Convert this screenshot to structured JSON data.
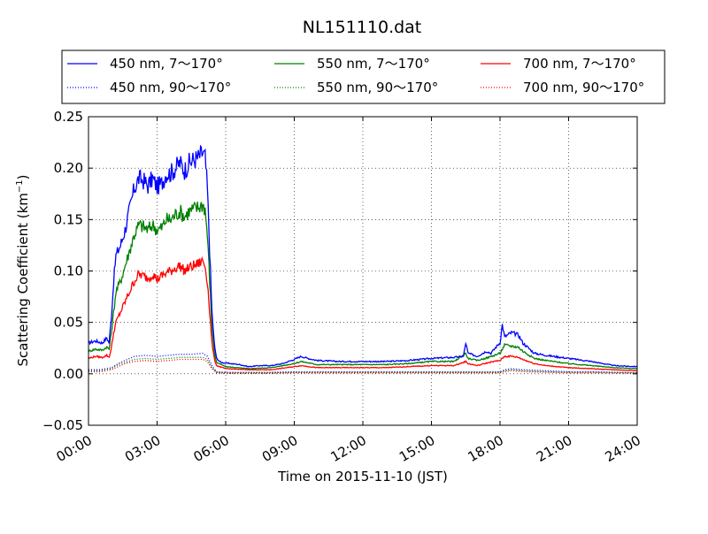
{
  "chart_data": {
    "type": "line",
    "title": "NL151110.dat",
    "xlabel": "Time on 2015-11-10 (JST)",
    "ylabel_main": "Scattering Coefficient (km",
    "ylabel_sup": "−1",
    "ylabel_close": ")",
    "xlim": [
      0,
      24
    ],
    "ylim": [
      -0.05,
      0.25
    ],
    "x_ticks": [
      0,
      3,
      6,
      9,
      12,
      15,
      18,
      21,
      24
    ],
    "x_tick_labels": [
      "00:00",
      "03:00",
      "06:00",
      "09:00",
      "12:00",
      "15:00",
      "18:00",
      "21:00",
      "24:00"
    ],
    "y_ticks": [
      -0.05,
      0.0,
      0.05,
      0.1,
      0.15,
      0.2,
      0.25
    ],
    "y_tick_labels": [
      "−0.05",
      "0.00",
      "0.05",
      "0.10",
      "0.15",
      "0.20",
      "0.25"
    ],
    "grid": true,
    "legend_position": "top, outside plot, 3 columns",
    "series": [
      {
        "name": "450 nm, 7～170°",
        "color": "#0000ff",
        "style": "solid",
        "points": [
          [
            0,
            0.03
          ],
          [
            0.3,
            0.032
          ],
          [
            0.6,
            0.03
          ],
          [
            0.8,
            0.035
          ],
          [
            0.9,
            0.03
          ],
          [
            1.0,
            0.055
          ],
          [
            1.1,
            0.09
          ],
          [
            1.2,
            0.115
          ],
          [
            1.4,
            0.125
          ],
          [
            1.6,
            0.14
          ],
          [
            1.8,
            0.16
          ],
          [
            2.0,
            0.18
          ],
          [
            2.2,
            0.19
          ],
          [
            2.4,
            0.188
          ],
          [
            2.6,
            0.183
          ],
          [
            2.8,
            0.19
          ],
          [
            3.0,
            0.182
          ],
          [
            3.2,
            0.185
          ],
          [
            3.4,
            0.195
          ],
          [
            3.6,
            0.195
          ],
          [
            3.8,
            0.2
          ],
          [
            4.0,
            0.205
          ],
          [
            4.2,
            0.198
          ],
          [
            4.4,
            0.205
          ],
          [
            4.6,
            0.208
          ],
          [
            4.8,
            0.21
          ],
          [
            5.0,
            0.215
          ],
          [
            5.1,
            0.21
          ],
          [
            5.2,
            0.18
          ],
          [
            5.3,
            0.12
          ],
          [
            5.4,
            0.06
          ],
          [
            5.5,
            0.03
          ],
          [
            5.6,
            0.015
          ],
          [
            5.8,
            0.011
          ],
          [
            6.2,
            0.01
          ],
          [
            6.6,
            0.009
          ],
          [
            7.0,
            0.007
          ],
          [
            7.5,
            0.008
          ],
          [
            8.0,
            0.008
          ],
          [
            8.5,
            0.01
          ],
          [
            9.0,
            0.014
          ],
          [
            9.3,
            0.017
          ],
          [
            9.6,
            0.015
          ],
          [
            10.0,
            0.013
          ],
          [
            11.0,
            0.012
          ],
          [
            12.0,
            0.012
          ],
          [
            13.0,
            0.012
          ],
          [
            14.0,
            0.013
          ],
          [
            15.0,
            0.015
          ],
          [
            16.0,
            0.016
          ],
          [
            16.4,
            0.017
          ],
          [
            16.5,
            0.03
          ],
          [
            16.6,
            0.02
          ],
          [
            17.0,
            0.017
          ],
          [
            17.4,
            0.022
          ],
          [
            17.6,
            0.02
          ],
          [
            17.9,
            0.028
          ],
          [
            18.0,
            0.03
          ],
          [
            18.1,
            0.048
          ],
          [
            18.2,
            0.036
          ],
          [
            18.5,
            0.04
          ],
          [
            18.8,
            0.038
          ],
          [
            19.0,
            0.03
          ],
          [
            19.5,
            0.02
          ],
          [
            20.0,
            0.018
          ],
          [
            21.0,
            0.015
          ],
          [
            22.0,
            0.012
          ],
          [
            23.0,
            0.008
          ],
          [
            24.0,
            0.007
          ]
        ]
      },
      {
        "name": "550 nm, 7～170°",
        "color": "#007f00",
        "style": "solid",
        "points": [
          [
            0,
            0.022
          ],
          [
            0.3,
            0.024
          ],
          [
            0.6,
            0.023
          ],
          [
            0.8,
            0.026
          ],
          [
            0.9,
            0.024
          ],
          [
            1.0,
            0.04
          ],
          [
            1.1,
            0.06
          ],
          [
            1.2,
            0.08
          ],
          [
            1.4,
            0.09
          ],
          [
            1.6,
            0.105
          ],
          [
            1.8,
            0.12
          ],
          [
            2.0,
            0.135
          ],
          [
            2.2,
            0.145
          ],
          [
            2.4,
            0.143
          ],
          [
            2.6,
            0.14
          ],
          [
            2.8,
            0.145
          ],
          [
            3.0,
            0.14
          ],
          [
            3.2,
            0.142
          ],
          [
            3.4,
            0.15
          ],
          [
            3.6,
            0.15
          ],
          [
            3.8,
            0.155
          ],
          [
            4.0,
            0.158
          ],
          [
            4.2,
            0.153
          ],
          [
            4.4,
            0.158
          ],
          [
            4.6,
            0.16
          ],
          [
            4.8,
            0.162
          ],
          [
            5.0,
            0.165
          ],
          [
            5.1,
            0.16
          ],
          [
            5.2,
            0.135
          ],
          [
            5.3,
            0.09
          ],
          [
            5.4,
            0.045
          ],
          [
            5.5,
            0.022
          ],
          [
            5.6,
            0.011
          ],
          [
            6.0,
            0.007
          ],
          [
            7.0,
            0.005
          ],
          [
            8.0,
            0.006
          ],
          [
            9.0,
            0.01
          ],
          [
            9.3,
            0.012
          ],
          [
            10.0,
            0.009
          ],
          [
            11.0,
            0.009
          ],
          [
            12.0,
            0.009
          ],
          [
            13.0,
            0.009
          ],
          [
            14.0,
            0.01
          ],
          [
            15.0,
            0.012
          ],
          [
            16.0,
            0.012
          ],
          [
            16.5,
            0.02
          ],
          [
            16.6,
            0.015
          ],
          [
            17.0,
            0.013
          ],
          [
            17.5,
            0.016
          ],
          [
            18.0,
            0.02
          ],
          [
            18.2,
            0.028
          ],
          [
            18.5,
            0.027
          ],
          [
            18.8,
            0.026
          ],
          [
            19.0,
            0.022
          ],
          [
            19.5,
            0.015
          ],
          [
            20.0,
            0.013
          ],
          [
            21.0,
            0.01
          ],
          [
            22.0,
            0.008
          ],
          [
            23.0,
            0.006
          ],
          [
            24.0,
            0.005
          ]
        ]
      },
      {
        "name": "700 nm, 7～170°",
        "color": "#ff0000",
        "style": "solid",
        "points": [
          [
            0,
            0.015
          ],
          [
            0.3,
            0.017
          ],
          [
            0.6,
            0.016
          ],
          [
            0.8,
            0.018
          ],
          [
            0.9,
            0.016
          ],
          [
            1.0,
            0.025
          ],
          [
            1.1,
            0.04
          ],
          [
            1.2,
            0.05
          ],
          [
            1.4,
            0.06
          ],
          [
            1.6,
            0.07
          ],
          [
            1.8,
            0.08
          ],
          [
            2.0,
            0.09
          ],
          [
            2.2,
            0.097
          ],
          [
            2.4,
            0.095
          ],
          [
            2.6,
            0.093
          ],
          [
            2.8,
            0.097
          ],
          [
            3.0,
            0.092
          ],
          [
            3.2,
            0.095
          ],
          [
            3.4,
            0.098
          ],
          [
            3.6,
            0.1
          ],
          [
            3.8,
            0.103
          ],
          [
            4.0,
            0.105
          ],
          [
            4.2,
            0.1
          ],
          [
            4.4,
            0.103
          ],
          [
            4.6,
            0.105
          ],
          [
            4.8,
            0.107
          ],
          [
            5.0,
            0.11
          ],
          [
            5.1,
            0.105
          ],
          [
            5.2,
            0.09
          ],
          [
            5.3,
            0.06
          ],
          [
            5.4,
            0.03
          ],
          [
            5.5,
            0.015
          ],
          [
            5.6,
            0.008
          ],
          [
            6.0,
            0.005
          ],
          [
            7.0,
            0.004
          ],
          [
            8.0,
            0.004
          ],
          [
            9.0,
            0.007
          ],
          [
            9.3,
            0.008
          ],
          [
            10.0,
            0.006
          ],
          [
            11.0,
            0.006
          ],
          [
            12.0,
            0.006
          ],
          [
            13.0,
            0.006
          ],
          [
            14.0,
            0.007
          ],
          [
            15.0,
            0.008
          ],
          [
            16.0,
            0.008
          ],
          [
            16.5,
            0.012
          ],
          [
            16.6,
            0.01
          ],
          [
            17.0,
            0.008
          ],
          [
            17.5,
            0.011
          ],
          [
            18.0,
            0.013
          ],
          [
            18.2,
            0.017
          ],
          [
            18.5,
            0.017
          ],
          [
            18.8,
            0.016
          ],
          [
            19.0,
            0.014
          ],
          [
            19.5,
            0.01
          ],
          [
            20.0,
            0.008
          ],
          [
            21.0,
            0.006
          ],
          [
            22.0,
            0.005
          ],
          [
            23.0,
            0.004
          ],
          [
            24.0,
            0.003
          ]
        ]
      },
      {
        "name": "450 nm, 90～170°",
        "color": "#0000ff",
        "style": "dotted",
        "points": [
          [
            0,
            0.004
          ],
          [
            0.5,
            0.004
          ],
          [
            1.0,
            0.006
          ],
          [
            1.3,
            0.01
          ],
          [
            1.6,
            0.013
          ],
          [
            2.0,
            0.017
          ],
          [
            2.5,
            0.018
          ],
          [
            3.0,
            0.017
          ],
          [
            3.5,
            0.018
          ],
          [
            4.0,
            0.019
          ],
          [
            4.5,
            0.019
          ],
          [
            5.0,
            0.02
          ],
          [
            5.2,
            0.017
          ],
          [
            5.4,
            0.008
          ],
          [
            5.6,
            0.002
          ],
          [
            6.0,
            0.0015
          ],
          [
            8.0,
            0.0015
          ],
          [
            9.0,
            0.002
          ],
          [
            10.0,
            0.002
          ],
          [
            12.0,
            0.002
          ],
          [
            14.0,
            0.002
          ],
          [
            16.0,
            0.002
          ],
          [
            17.0,
            0.002
          ],
          [
            18.0,
            0.002
          ],
          [
            18.2,
            0.004
          ],
          [
            18.5,
            0.005
          ],
          [
            19.0,
            0.004
          ],
          [
            20.0,
            0.003
          ],
          [
            21.0,
            0.002
          ],
          [
            22.0,
            0.002
          ],
          [
            24.0,
            0.001
          ]
        ]
      },
      {
        "name": "550 nm, 90～170°",
        "color": "#007f00",
        "style": "dotted",
        "points": [
          [
            0,
            0.003
          ],
          [
            0.5,
            0.003
          ],
          [
            1.0,
            0.005
          ],
          [
            1.3,
            0.009
          ],
          [
            1.6,
            0.011
          ],
          [
            2.0,
            0.014
          ],
          [
            2.5,
            0.015
          ],
          [
            3.0,
            0.014
          ],
          [
            3.5,
            0.015
          ],
          [
            4.0,
            0.016
          ],
          [
            4.5,
            0.016
          ],
          [
            5.0,
            0.016
          ],
          [
            5.2,
            0.014
          ],
          [
            5.4,
            0.006
          ],
          [
            5.6,
            0.0015
          ],
          [
            6.0,
            0.001
          ],
          [
            8.0,
            0.001
          ],
          [
            9.0,
            0.0015
          ],
          [
            10.0,
            0.0015
          ],
          [
            12.0,
            0.0015
          ],
          [
            14.0,
            0.0015
          ],
          [
            16.0,
            0.0015
          ],
          [
            17.0,
            0.0015
          ],
          [
            18.0,
            0.0015
          ],
          [
            18.2,
            0.003
          ],
          [
            18.5,
            0.004
          ],
          [
            19.0,
            0.003
          ],
          [
            20.0,
            0.002
          ],
          [
            21.0,
            0.0015
          ],
          [
            22.0,
            0.0015
          ],
          [
            24.0,
            0.001
          ]
        ]
      },
      {
        "name": "700 nm, 90～170°",
        "color": "#ff0000",
        "style": "dotted",
        "points": [
          [
            0,
            0.002
          ],
          [
            0.5,
            0.002
          ],
          [
            1.0,
            0.004
          ],
          [
            1.3,
            0.007
          ],
          [
            1.6,
            0.01
          ],
          [
            2.0,
            0.012
          ],
          [
            2.5,
            0.013
          ],
          [
            3.0,
            0.012
          ],
          [
            3.5,
            0.013
          ],
          [
            4.0,
            0.014
          ],
          [
            4.5,
            0.014
          ],
          [
            5.0,
            0.014
          ],
          [
            5.2,
            0.012
          ],
          [
            5.4,
            0.005
          ],
          [
            5.6,
            0.001
          ],
          [
            6.0,
            0.0005
          ],
          [
            8.0,
            0.0005
          ],
          [
            9.0,
            0.001
          ],
          [
            10.0,
            0.001
          ],
          [
            12.0,
            0.001
          ],
          [
            14.0,
            0.001
          ],
          [
            16.0,
            0.001
          ],
          [
            17.0,
            0.001
          ],
          [
            18.0,
            0.001
          ],
          [
            18.2,
            0.002
          ],
          [
            18.5,
            0.003
          ],
          [
            19.0,
            0.002
          ],
          [
            20.0,
            0.0015
          ],
          [
            21.0,
            0.001
          ],
          [
            22.0,
            0.001
          ],
          [
            24.0,
            0.0005
          ]
        ]
      }
    ]
  }
}
